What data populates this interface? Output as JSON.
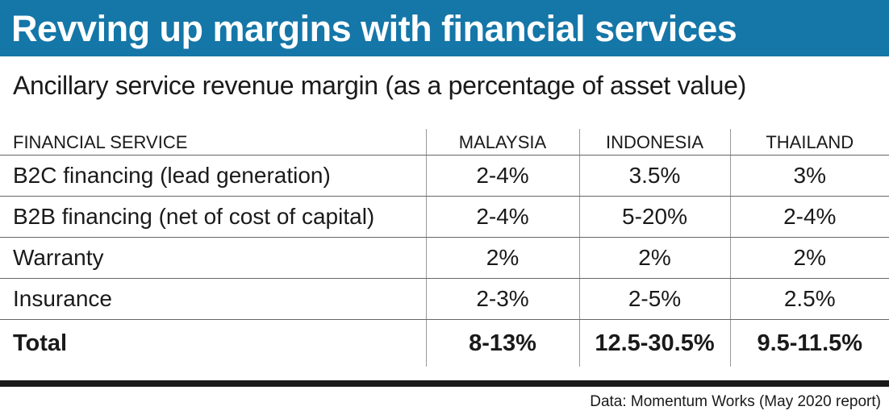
{
  "header": {
    "title": "Revving up margins with financial services",
    "subtitle": "Ancillary service revenue margin (as a percentage of asset value)"
  },
  "table": {
    "columns": [
      "FINANCIAL SERVICE",
      "MALAYSIA",
      "INDONESIA",
      "THAILAND"
    ],
    "rows": [
      {
        "label": "B2C financing (lead generation)",
        "values": [
          "2-4%",
          "3.5%",
          "3%"
        ]
      },
      {
        "label": "B2B financing (net of cost of capital)",
        "values": [
          "2-4%",
          "5-20%",
          "2-4%"
        ]
      },
      {
        "label": "Warranty",
        "values": [
          "2%",
          "2%",
          "2%"
        ]
      },
      {
        "label": "Insurance",
        "values": [
          "2-3%",
          "2-5%",
          "2.5%"
        ]
      },
      {
        "label": "Total",
        "values": [
          "8-13%",
          "12.5-30.5%",
          "9.5-11.5%"
        ]
      }
    ]
  },
  "chart_data": {
    "type": "table",
    "title": "Revving up margins with financial services",
    "subtitle": "Ancillary service revenue margin (as a percentage of asset value)",
    "columns": [
      "FINANCIAL SERVICE",
      "MALAYSIA",
      "INDONESIA",
      "THAILAND"
    ],
    "rows": [
      [
        "B2C financing (lead generation)",
        "2-4%",
        "3.5%",
        "3%"
      ],
      [
        "B2B financing (net of cost of capital)",
        "2-4%",
        "5-20%",
        "2-4%"
      ],
      [
        "Warranty",
        "2%",
        "2%",
        "2%"
      ],
      [
        "Insurance",
        "2-3%",
        "2-5%",
        "2.5%"
      ],
      [
        "Total",
        "8-13%",
        "12.5-30.5%",
        "9.5-11.5%"
      ]
    ]
  },
  "footer": {
    "source": "Data: Momentum Works (May 2020 report)"
  },
  "colors": {
    "banner": "#1576a8",
    "text": "#1a1a1a",
    "rule": "#666666"
  }
}
